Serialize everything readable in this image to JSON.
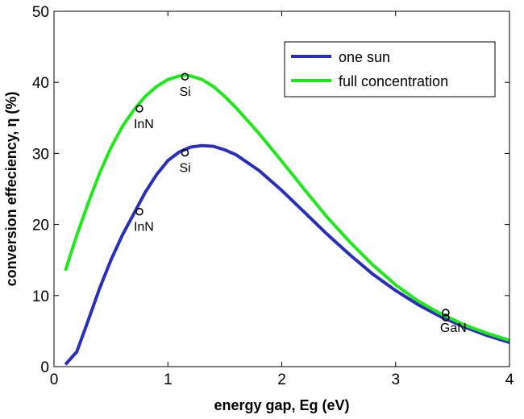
{
  "chart_data": {
    "type": "line",
    "xlabel": "energy gap, Eg (eV)",
    "ylabel": "conversion effeciency,  η (%)",
    "xlim": [
      0,
      4
    ],
    "ylim": [
      0,
      50
    ],
    "xticks": [
      0,
      1,
      2,
      3,
      4
    ],
    "yticks": [
      0,
      10,
      20,
      30,
      40,
      50
    ],
    "grid": false,
    "legend_position": "top-right",
    "series": [
      {
        "name": "one sun",
        "color": "#2b2fb8",
        "x": [
          0.1,
          0.2,
          0.3,
          0.4,
          0.5,
          0.6,
          0.7,
          0.8,
          0.9,
          1.0,
          1.1,
          1.2,
          1.3,
          1.4,
          1.5,
          1.6,
          1.8,
          2.0,
          2.2,
          2.4,
          2.6,
          2.8,
          3.0,
          3.2,
          3.4,
          3.6,
          3.8,
          4.0
        ],
        "y": [
          0.3,
          2.1,
          6.5,
          11.0,
          15.0,
          18.5,
          21.5,
          24.5,
          27.0,
          29.0,
          30.2,
          30.9,
          31.1,
          31.0,
          30.5,
          29.8,
          27.6,
          24.8,
          21.7,
          18.6,
          15.7,
          13.0,
          10.7,
          8.7,
          7.0,
          5.6,
          4.4,
          3.4
        ]
      },
      {
        "name": "full concentration",
        "color": "#22e61e",
        "x": [
          0.1,
          0.2,
          0.3,
          0.4,
          0.5,
          0.6,
          0.7,
          0.8,
          0.9,
          1.0,
          1.1,
          1.15,
          1.2,
          1.3,
          1.4,
          1.5,
          1.6,
          1.8,
          2.0,
          2.2,
          2.4,
          2.6,
          2.8,
          3.0,
          3.2,
          3.4,
          3.6,
          3.8,
          4.0
        ],
        "y": [
          13.5,
          18.5,
          23.0,
          27.2,
          30.8,
          33.8,
          36.1,
          38.0,
          39.4,
          40.4,
          40.9,
          41.0,
          40.9,
          40.4,
          39.4,
          38.0,
          36.4,
          32.8,
          28.9,
          24.9,
          21.0,
          17.5,
          14.3,
          11.5,
          9.2,
          7.4,
          5.9,
          4.7,
          3.7
        ]
      }
    ],
    "annotations": [
      {
        "label": "InN",
        "x": 0.75,
        "y": 36.3
      },
      {
        "label": "Si",
        "x": 1.15,
        "y": 40.8
      },
      {
        "label": "InN",
        "x": 0.75,
        "y": 21.8
      },
      {
        "label": "Si",
        "x": 1.15,
        "y": 30.1
      },
      {
        "label": "GaN",
        "x": 3.44,
        "y": 7.6
      }
    ],
    "extra_markers": [
      {
        "x": 3.44,
        "y": 6.9
      }
    ]
  }
}
